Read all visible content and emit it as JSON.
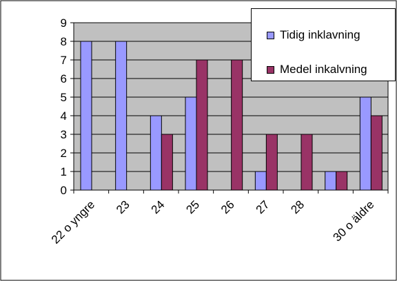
{
  "chart_data": {
    "type": "bar",
    "categories": [
      "22 o yngre",
      "23",
      "24",
      "25",
      "26",
      "27",
      "28",
      "",
      "30 o äldre"
    ],
    "series": [
      {
        "name": "Tidig inklavning",
        "color": "#9999ff",
        "values": [
          8,
          8,
          4,
          5,
          0,
          1,
          0,
          1,
          5
        ]
      },
      {
        "name": "Medel inkalvning",
        "color": "#993366",
        "values": [
          0,
          0,
          3,
          7,
          7,
          3,
          3,
          1,
          4
        ]
      }
    ],
    "ylim": [
      0,
      9
    ],
    "yticks": [
      0,
      1,
      2,
      3,
      4,
      5,
      6,
      7,
      8,
      9
    ],
    "grid": true,
    "plot_background": "#c0c0c0",
    "legend_position": "top-right",
    "title": "",
    "xlabel": "",
    "ylabel": ""
  }
}
